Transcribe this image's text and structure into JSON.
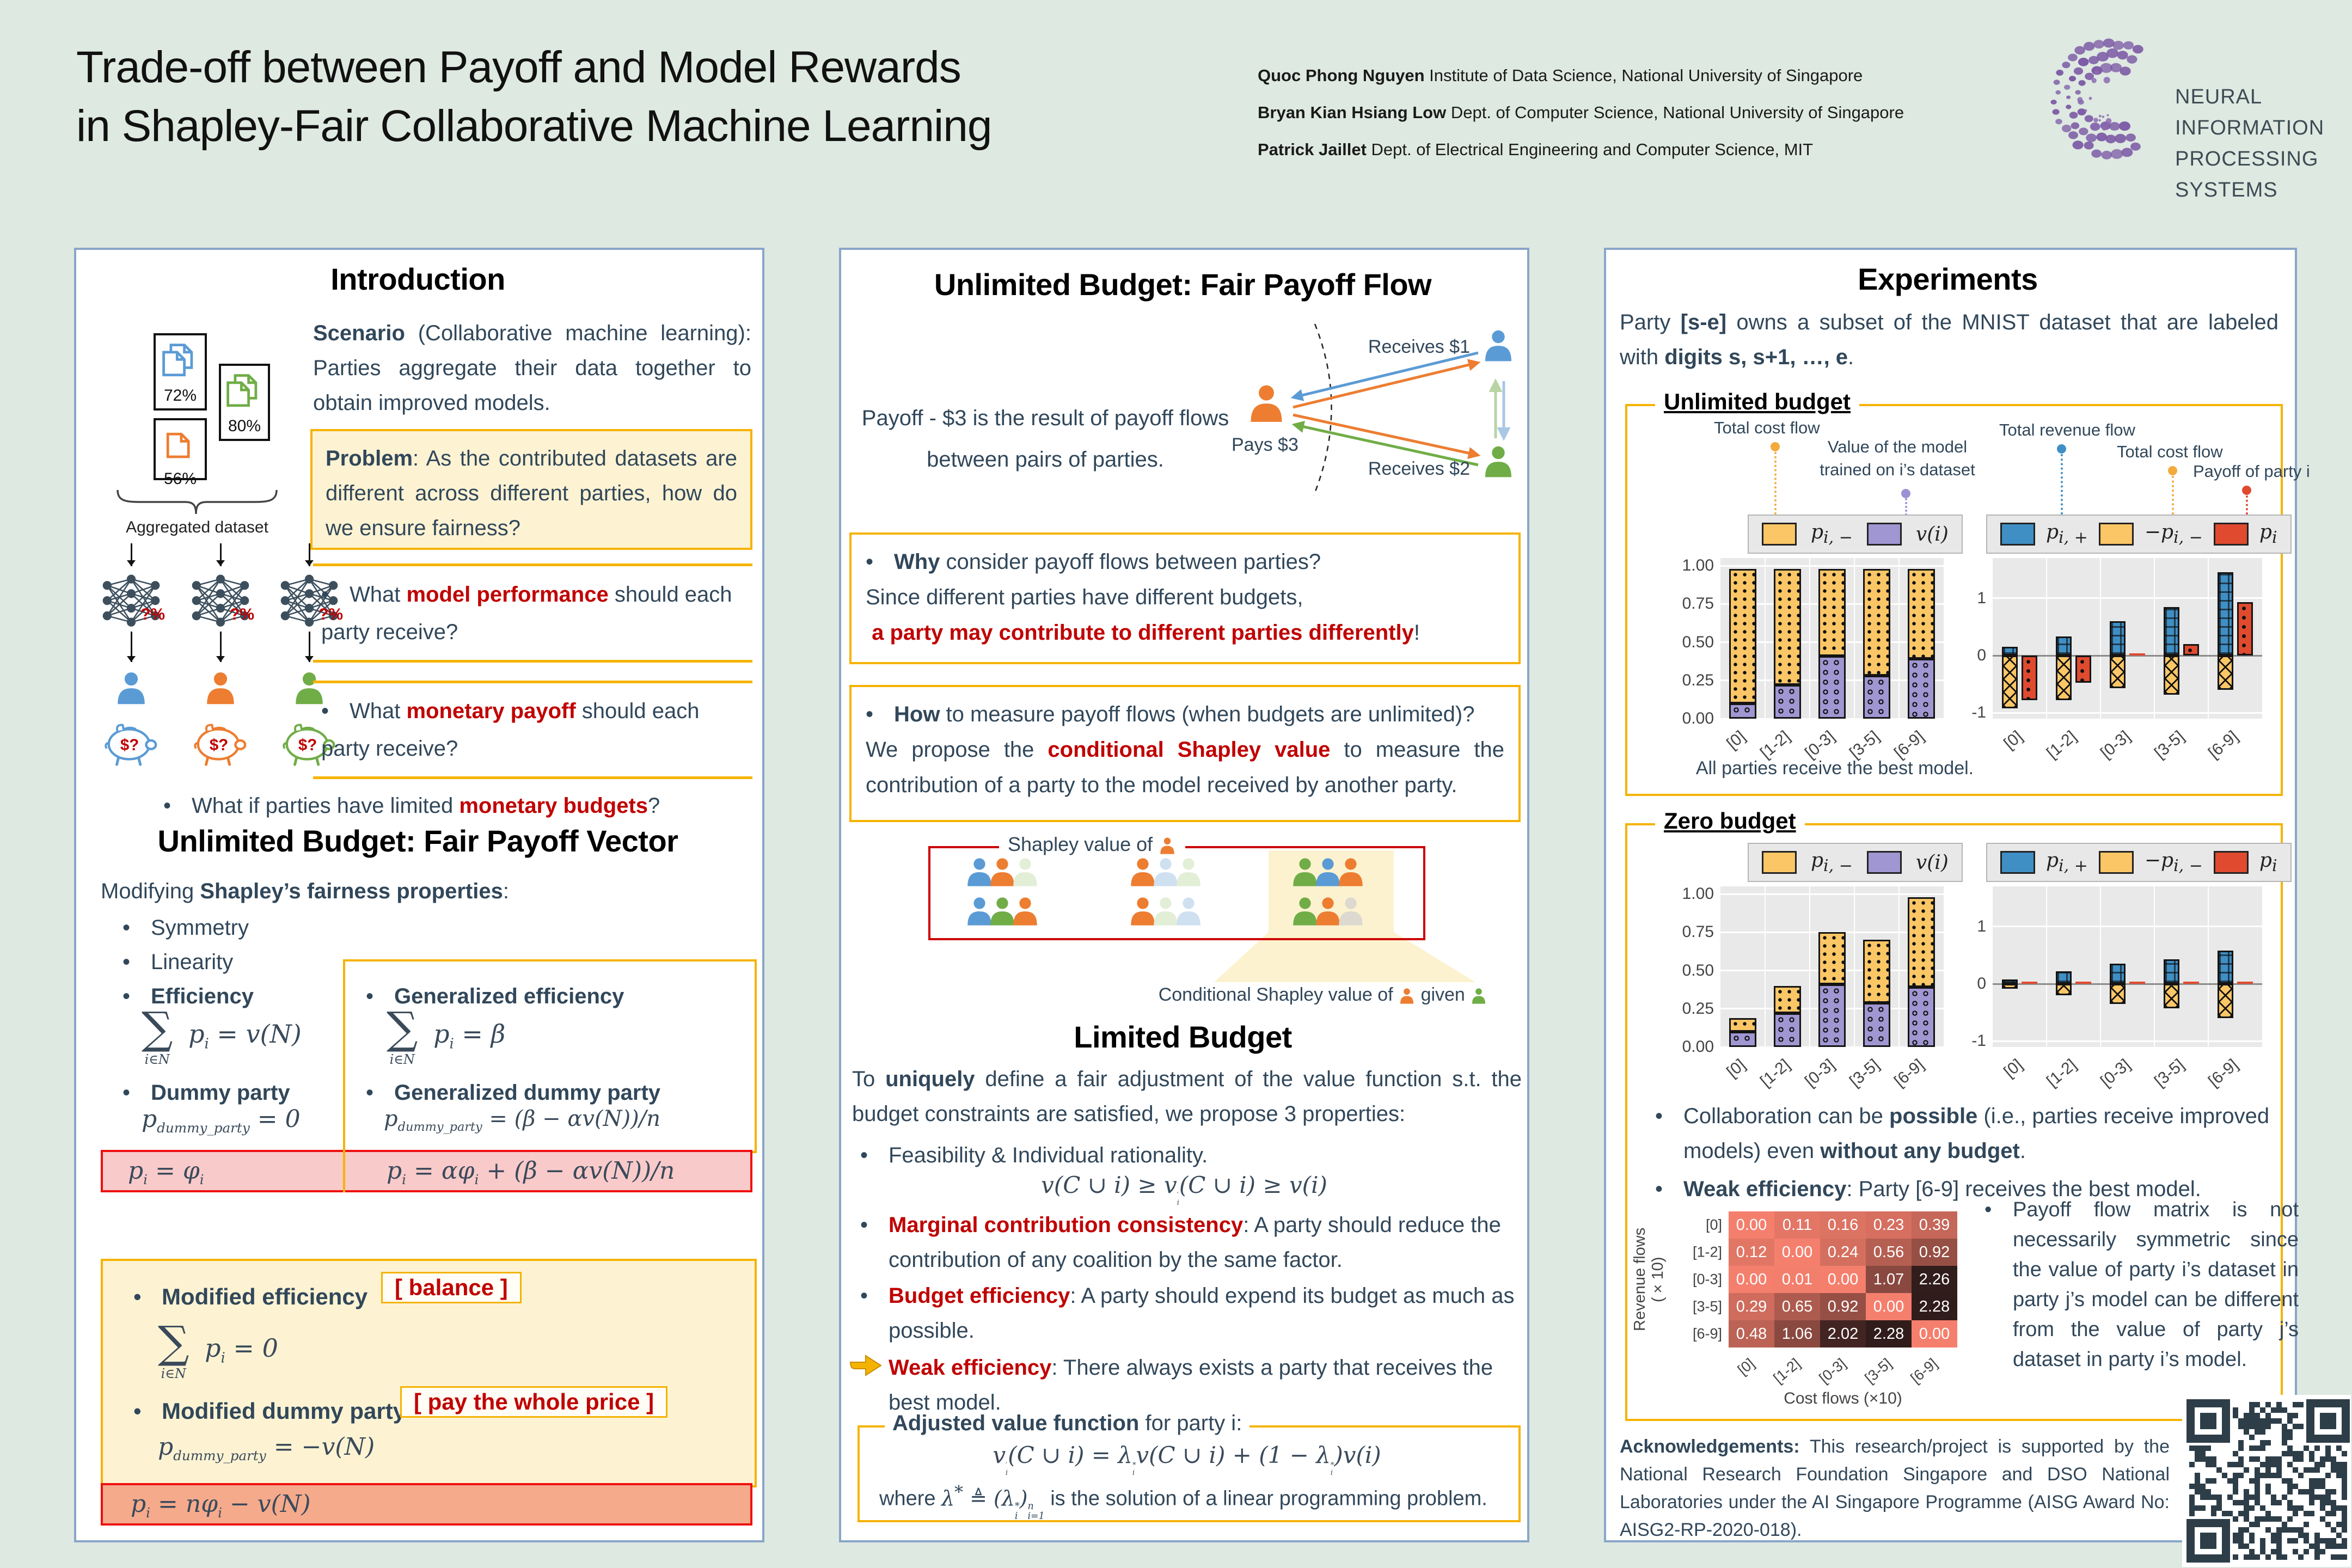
{
  "header": {
    "title_line1": "Trade-off between Payoff and Model Rewards",
    "title_line2": "in Shapley-Fair Collaborative Machine Learning",
    "authors": [
      {
        "name": "Quoc Phong Nguyen",
        "affil": " Institute of Data Science, National University of Singapore"
      },
      {
        "name": "Bryan Kian Hsiang Low",
        "affil": " Dept. of Computer Science, National University of Singapore"
      },
      {
        "name": "Patrick Jaillet",
        "affil": " Dept. of Electrical Engineering and Computer Science, MIT"
      }
    ],
    "logo_line1": "NEURAL INFORMATION",
    "logo_line2": "PROCESSING SYSTEMS"
  },
  "col1": {
    "heading": "Introduction",
    "scenario_html": "<b>Scenario</b> (Collaborative machine learning): Parties aggregate their data together to obtain improved models.",
    "problem_html": "<b>Problem</b>: As the contributed datasets are different across different parties, how do we ensure fairness?",
    "fig": {
      "docs": [
        {
          "pct": "72%"
        },
        {
          "pct": "80%"
        },
        {
          "pct": "56%"
        }
      ],
      "aggregated": "Aggregated dataset",
      "qpct": "?%",
      "piggy_label": "$?"
    },
    "q1_html": "<span class='blt'>•</span>What <span class='red b'>model performance</span> should each party receive?",
    "q2_html": "<span class='blt'>•</span>What <span class='red b'>monetary payoff</span> should each party receive?",
    "q3_html": "<span class='blt'>•</span>What if parties have limited <span class='red b'>monetary budgets</span>?",
    "heading2": "Unlimited Budget: Fair Payoff Vector",
    "modifying_html": "Modifying <b>Shapley’s fairness properties</b>:",
    "sym_html": "<span class='blt'>•</span>Symmetry",
    "lin_html": "<span class='blt'>•</span>Linearity",
    "eff_html": "<span class='blt'>•</span><b>Efficiency</b>",
    "dummy_html": "<span class='blt'>•</span><b>Dummy party</b>",
    "gen_eff_html": "<span class='blt'>•</span><b>Generalized efficiency</b>",
    "gen_dummy_html": "<span class='blt'>•</span><b>Generalized dummy party</b>",
    "mod_eff_html": "<span class='blt'>•</span><b>Modified efficiency</b>",
    "mod_dummy_html": "<span class='blt'>•</span><b>Modified dummy party</b>",
    "balance_chip": "[ balance ]",
    "pay_chip": "[ pay the whole price ]",
    "f_eff": "<span class='sum'><span class='sig'>∑</span><span class='lim'>i∈N</span></span> p<sub>i</sub> = v(N)",
    "f_dummy": "p<sub>dummy_party</sub> = 0",
    "f_gen_eff": "<span class='sum'><span class='sig'>∑</span><span class='lim'>i∈N</span></span> p<sub>i</sub> = β",
    "f_gen_dummy": "p<sub>dummy_party</sub> = (β − αv(N))/n",
    "f_res1": "p<sub>i</sub> = φ<sub>i</sub>",
    "f_res2": "p<sub>i</sub> = αφ<sub>i</sub> + (β − αv(N))/n",
    "f_mod_eff": "<span class='sum'><span class='sig'>∑</span><span class='lim'>i∈N</span></span> p<sub>i</sub> = 0",
    "f_mod_dummy": "p<sub>dummy_party</sub> = −v(N)",
    "f_res3": "p<sub>i</sub> = nφ<sub>i</sub> − v(N)"
  },
  "col2": {
    "heading": "Unlimited Budget: Fair Payoff Flow",
    "payoff_html": "Payoff - $3 is the result of payoff flows<br>between pairs of parties.",
    "flow": {
      "receives1": "Receives $1",
      "pays": "Pays $3",
      "receives2": "Receives $2"
    },
    "why_html": "<span class='blt'>•</span><b>Why</b> consider payoff flows between parties?<br>Since different parties have different budgets,<br>&nbsp;<span class='red b'>a party may contribute to different parties differently</span>!",
    "how_html": "<span class='blt'>•</span><b>How</b> to measure payoff flows (when budgets are unlimited)?<br>We propose the <span class='red b'>conditional Shapley value</span> to measure the contribution of a party to the model received by another party.",
    "shapley": {
      "label": "Shapley value of",
      "cond_pre": "Conditional Shapley value of",
      "cond_mid": "given",
      "groups": [
        [
          [
            "blue",
            "orange",
            "palegreen2"
          ],
          [
            "orange",
            "paleblue",
            "palegreen2"
          ],
          [
            "green",
            "blue",
            "orange"
          ]
        ],
        [
          [
            "blue",
            "green",
            "orange"
          ],
          [
            "orange",
            "palegreen2",
            "paleblue"
          ],
          [
            "green",
            "orange",
            "palegray"
          ]
        ]
      ]
    },
    "limited": {
      "heading": "Limited Budget",
      "intro_html": "To <b>uniquely</b> define a fair adjustment of the value function s.t. the budget constraints are satisfied, we propose 3 properties:",
      "feas_html": "<span class='blt'>•</span>Feasibility &amp; Individual rationality.",
      "f_feas": "v(C ∪ i) ≥ v<span class='supsub'><sup>′</sup><sub>i</sub></span>(C ∪ i) ≥ v(i)",
      "marginal_html": "<span class='blt'>•</span><span class='red b'>Marginal contribution consistency</span>: A party should reduce the contribution of any coalition by the same factor.",
      "budget_html": "<span class='blt'>•</span><span class='red b'>Budget efficiency</span>: A party should expend its budget as much as possible.",
      "weak_html": "<span class='red b'>Weak efficiency</span>: There always exists a party that receives the best model.",
      "adj_label_html": "<b>Adjusted value function</b> for party i:",
      "f_adj": "v<span class='supsub'><sup>′</sup><sub>i</sub></span>(C ∪ i) = λ<span class='supsub'><sup>*</sup><sub>i</sub></span>v(C ∪ i) + (1 − λ<span class='supsub'><sup>*</sup><sub>i</sub></span>)v(i)",
      "where_html": "where <span class='fmx'>λ<sup>*</sup> ≜ (λ<span class='supsub'><sup>*</sup><sub>i</sub></span>)<span class='supsub'><sup>n</sup><sub>i=1</sub></span></span> is the solution of a linear programming problem."
    }
  },
  "col3": {
    "heading": "Experiments",
    "intro_html": "Party <b>[s-e]</b> owns a subset of the MNIST dataset that are labeled with <b>digits s, s+1, …, e</b>.",
    "ub_label": "Unlimited budget",
    "zb_label": "Zero budget",
    "ub_caption": "All parties receive the best model.",
    "ann_total_cost": "Total cost flow",
    "ann_value_model_1": "Value of the model",
    "ann_value_model_2": "trained on i’s dataset",
    "ann_total_revenue": "Total revenue flow",
    "ann_total_cost2": "Total cost flow",
    "ann_payoff": "Payoff of party i",
    "zb_bullet1_html": "<span class='blt'>•</span>Collaboration can be <b>possible</b> (i.e., parties receive improved models) even <b>without any budget</b>.",
    "zb_bullet2_html": "<span class='blt'>•</span><b>Weak efficiency</b>: Party [6-9] receives the best model.",
    "side_html": "<span class='blt'>•</span>Payoff flow matrix is not necessarily symmetric since the value of party i’s dataset in party j’s model can be different from the value of party j’s dataset in party i’s model.",
    "ack_html": "<b>Acknowledgements:</b> This research/project is supported by the National Research Foundation Singapore and DSO National Laboratories under the AI Singapore Programme (AISG Award No: AISG2-RP-2020-018)."
  },
  "legend": {
    "orange_html": "p<sub>i, −</sub>",
    "purple_html": "v(i)",
    "blue_html": "p<sub>i, +</sub>",
    "orange_neg_html": "−p<sub>i, −</sub>",
    "red_html": "p<sub>i</sub>"
  },
  "chart_data": [
    {
      "id": "ub_left",
      "type": "stacked_bar",
      "title": "Unlimited budget: payoff p(i,-) and value v(i) per party",
      "categories": [
        "[0]",
        "[1-2]",
        "[0-3]",
        "[3-5]",
        "[6-9]"
      ],
      "series": [
        {
          "name": "v(i)",
          "color": "purple",
          "values": [
            0.1,
            0.22,
            0.41,
            0.28,
            0.39
          ]
        },
        {
          "name": "p_{i,-}",
          "color": "orange",
          "values": [
            0.88,
            0.76,
            0.57,
            0.7,
            0.59
          ]
        }
      ],
      "ylim": [
        0,
        1.05
      ],
      "yticks": [
        0,
        0.25,
        0.5,
        0.75,
        1.0
      ],
      "ytick_labels": [
        "0.00",
        "0.25",
        "0.50",
        "0.75",
        "1.00"
      ],
      "grid": true,
      "legend_position": "top",
      "caption": "All parties receive the best model."
    },
    {
      "id": "ub_right",
      "type": "flow_bar",
      "title": "Unlimited budget: revenue p(i,+), cost -p(i,-), payoff p(i)",
      "categories": [
        "[0]",
        "[1-2]",
        "[0-3]",
        "[3-5]",
        "[6-9]"
      ],
      "series": [
        {
          "name": "p_{i,+}",
          "color": "blue",
          "values": [
            0.15,
            0.33,
            0.6,
            0.85,
            1.45
          ]
        },
        {
          "name": "-p_{i,-}",
          "color": "orange_hatch",
          "values": [
            -0.92,
            -0.78,
            -0.57,
            -0.68,
            -0.6
          ]
        },
        {
          "name": "p_i",
          "color": "red",
          "values": [
            -0.78,
            -0.47,
            0.03,
            0.2,
            0.93
          ]
        }
      ],
      "ylim": [
        -1.1,
        1.7
      ],
      "yticks": [
        -1,
        0,
        1
      ],
      "ytick_labels": [
        "-1",
        "0",
        "1"
      ],
      "grid": true
    },
    {
      "id": "zb_left",
      "type": "stacked_bar",
      "title": "Zero budget: payoff p(i,-) and value v(i) per party",
      "categories": [
        "[0]",
        "[1-2]",
        "[0-3]",
        "[3-5]",
        "[6-9]"
      ],
      "series": [
        {
          "name": "v(i)",
          "color": "purple",
          "values": [
            0.1,
            0.22,
            0.41,
            0.29,
            0.39
          ]
        },
        {
          "name": "p_{i,-}",
          "color": "orange",
          "values": [
            0.09,
            0.18,
            0.34,
            0.41,
            0.59
          ]
        }
      ],
      "ylim": [
        0,
        1.05
      ],
      "yticks": [
        0,
        0.25,
        0.5,
        0.75,
        1.0
      ],
      "ytick_labels": [
        "0.00",
        "0.25",
        "0.50",
        "0.75",
        "1.00"
      ],
      "grid": true
    },
    {
      "id": "zb_right",
      "type": "flow_bar",
      "title": "Zero budget: revenue p(i,+), cost -p(i,-), payoff p(i)",
      "categories": [
        "[0]",
        "[1-2]",
        "[0-3]",
        "[3-5]",
        "[6-9]"
      ],
      "series": [
        {
          "name": "p_{i,+}",
          "color": "blue",
          "values": [
            0.08,
            0.22,
            0.35,
            0.43,
            0.58
          ]
        },
        {
          "name": "-p_{i,-}",
          "color": "orange_hatch",
          "values": [
            -0.08,
            -0.2,
            -0.35,
            -0.43,
            -0.6
          ]
        },
        {
          "name": "p_i",
          "color": "red",
          "values": [
            0.01,
            0.01,
            0.01,
            0.01,
            0.01
          ]
        }
      ],
      "ylim": [
        -1.1,
        1.7
      ],
      "yticks": [
        -1,
        0,
        1
      ],
      "ytick_labels": [
        "-1",
        "0",
        "1"
      ],
      "grid": true
    },
    {
      "id": "heatmap",
      "type": "heatmap",
      "rows": [
        "[0]",
        "[1-2]",
        "[0-3]",
        "[3-5]",
        "[6-9]"
      ],
      "cols": [
        "[0]",
        "[1-2]",
        "[0-3]",
        "[3-5]",
        "[6-9]"
      ],
      "values": [
        [
          0.0,
          0.11,
          0.16,
          0.23,
          0.39
        ],
        [
          0.12,
          0.0,
          0.24,
          0.56,
          0.92
        ],
        [
          0.0,
          0.01,
          0.0,
          1.07,
          2.26
        ],
        [
          0.29,
          0.65,
          0.92,
          0.0,
          2.28
        ],
        [
          0.48,
          1.06,
          2.02,
          2.28,
          0.0
        ]
      ],
      "xlabel": "Cost flows (×10)",
      "ylabel": "Revenue flows (×10)",
      "vmax": 2.28
    }
  ]
}
